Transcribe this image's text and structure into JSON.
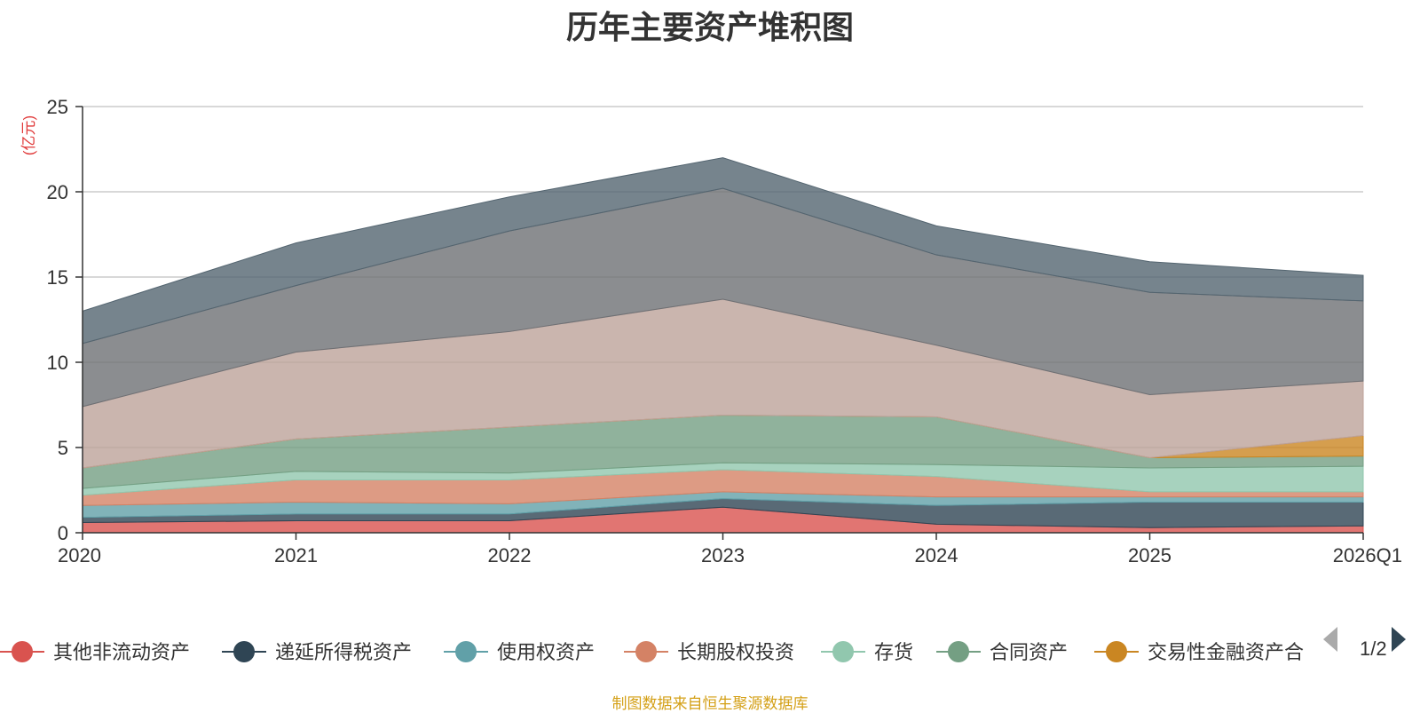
{
  "chart_data": {
    "type": "area",
    "title": "历年主要资产堆积图",
    "ylabel": "(亿元)",
    "xlabel": "",
    "ylim": [
      0,
      25
    ],
    "yticks": [
      0,
      5,
      10,
      15,
      20,
      25
    ],
    "categories": [
      "2020",
      "2021",
      "2022",
      "2023",
      "2024",
      "2025",
      "2026Q1"
    ],
    "stacked": true,
    "series": [
      {
        "name": "其他非流动资产",
        "values": [
          0.6,
          0.7,
          0.7,
          1.5,
          0.5,
          0.3,
          0.4
        ],
        "color": "#d9534f",
        "in_legend": true
      },
      {
        "name": "递延所得税资产",
        "values": [
          0.3,
          0.4,
          0.4,
          0.5,
          1.1,
          1.5,
          1.4
        ],
        "color": "#2f4554",
        "in_legend": true
      },
      {
        "name": "使用权资产",
        "values": [
          0.7,
          0.7,
          0.6,
          0.4,
          0.5,
          0.3,
          0.3
        ],
        "color": "#61a0a8",
        "in_legend": true
      },
      {
        "name": "长期股权投资",
        "values": [
          0.6,
          1.3,
          1.4,
          1.3,
          1.2,
          0.3,
          0.3
        ],
        "color": "#d48265",
        "in_legend": true
      },
      {
        "name": "存货",
        "values": [
          0.4,
          0.5,
          0.4,
          0.4,
          0.7,
          1.4,
          1.5
        ],
        "color": "#91c7ae",
        "in_legend": true
      },
      {
        "name": "合同资产",
        "values": [
          1.2,
          1.9,
          2.7,
          2.8,
          2.8,
          0.6,
          0.6
        ],
        "color": "#749f83",
        "in_legend": true
      },
      {
        "name": "交易性金融资产合",
        "values": [
          0,
          0,
          0,
          0,
          0,
          0,
          1.2
        ],
        "color": "#ca8622",
        "in_legend": true
      },
      {
        "name": "series-8",
        "values": [
          3.6,
          5.1,
          5.6,
          6.8,
          4.2,
          3.7,
          3.2
        ],
        "color": "#bda29a",
        "in_legend": false
      },
      {
        "name": "series-9",
        "values": [
          3.7,
          3.9,
          5.9,
          6.5,
          5.3,
          6.0,
          4.7
        ],
        "color": "#6e7074",
        "in_legend": false
      },
      {
        "name": "series-10",
        "values": [
          1.9,
          2.5,
          2.0,
          1.8,
          1.7,
          1.8,
          1.5
        ],
        "color": "#546570",
        "in_legend": false
      }
    ]
  },
  "legend": {
    "page": "1/2"
  },
  "source_note": "制图数据来自恒生聚源数据库"
}
